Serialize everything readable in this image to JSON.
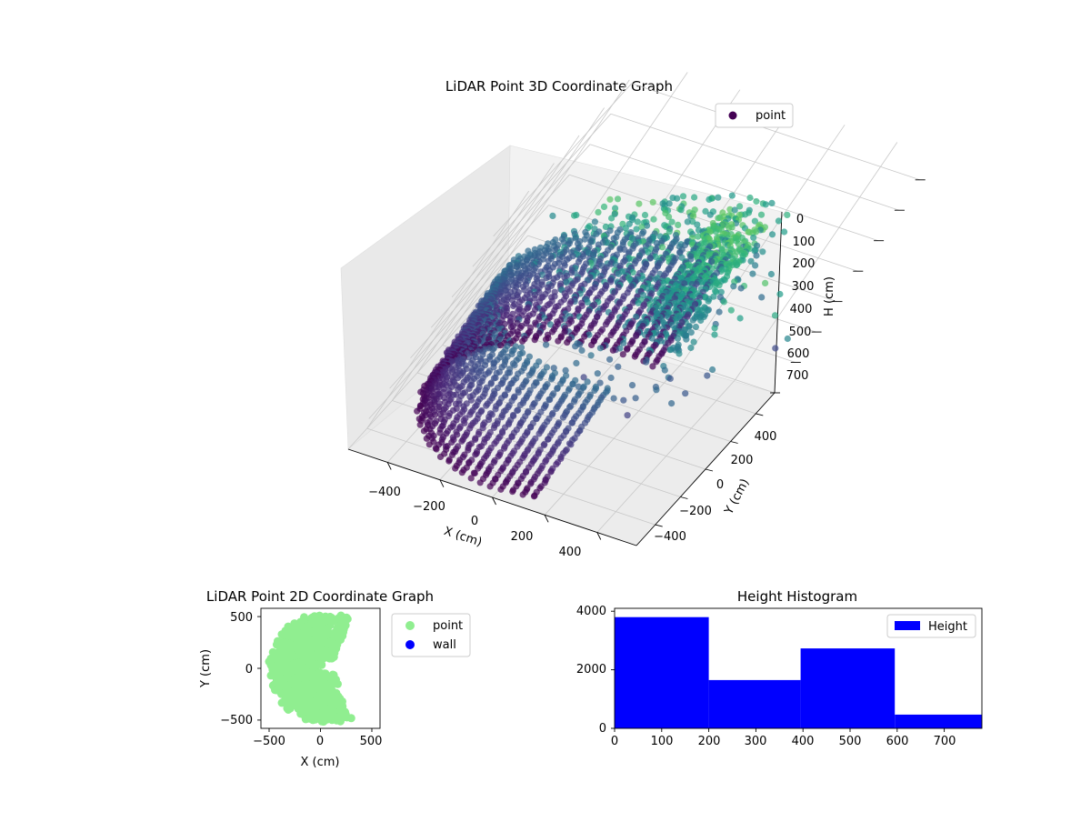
{
  "chart_data": [
    {
      "type": "scatter",
      "projection": "3d",
      "title": "LiDAR Point 3D Coordinate Graph",
      "xlabel": "X (cm)",
      "ylabel": "Y (cm)",
      "zlabel": "H (cm)",
      "xlim": [
        -550,
        550
      ],
      "ylim": [
        -550,
        550
      ],
      "zlim": [
        780,
        0
      ],
      "z_inverted": true,
      "x_ticks": [
        "−400",
        "−200",
        "0",
        "200",
        "400"
      ],
      "y_ticks": [
        "−400",
        "−200",
        "0",
        "200",
        "400"
      ],
      "z_ticks": [
        "0",
        "100",
        "200",
        "300",
        "400",
        "500",
        "600",
        "700"
      ],
      "grid": true,
      "colormap": "viridis",
      "color_by": "height",
      "legend": {
        "entries": [
          "point"
        ],
        "placement": "upper right"
      },
      "legend_color": "#440154",
      "series": [
        {
          "name": "point",
          "shape": "semicircular wall of points, radius about 500 cm, heights 0 to 780 cm"
        }
      ]
    },
    {
      "type": "scatter",
      "title": "LiDAR Point 2D Coordinate Graph",
      "xlabel": "X (cm)",
      "ylabel": "Y (cm)",
      "xlim": [
        -580,
        580
      ],
      "ylim": [
        -580,
        580
      ],
      "x_ticks": [
        "−500",
        "0",
        "500"
      ],
      "y_ticks": [
        "500",
        "0",
        "−500"
      ],
      "legend": {
        "entries": [
          "point",
          "wall"
        ],
        "placement": "outside right"
      },
      "series": [
        {
          "name": "point",
          "color": "#90ee90"
        },
        {
          "name": "wall",
          "color": "#0000ff"
        }
      ]
    },
    {
      "type": "bar",
      "subtype": "histogram",
      "title": "Height Histogram",
      "xlim": [
        0,
        780
      ],
      "ylim": [
        0,
        4100
      ],
      "x_ticks": [
        "0",
        "100",
        "200",
        "300",
        "400",
        "500",
        "600",
        "700"
      ],
      "y_ticks": [
        "0",
        "2000",
        "4000"
      ],
      "bin_edges": [
        0,
        200,
        395,
        595,
        780
      ],
      "values": [
        3800,
        1650,
        2730,
        470
      ],
      "color": "#0000ff",
      "legend": {
        "entries": [
          "Height"
        ],
        "placement": "upper right"
      }
    }
  ]
}
